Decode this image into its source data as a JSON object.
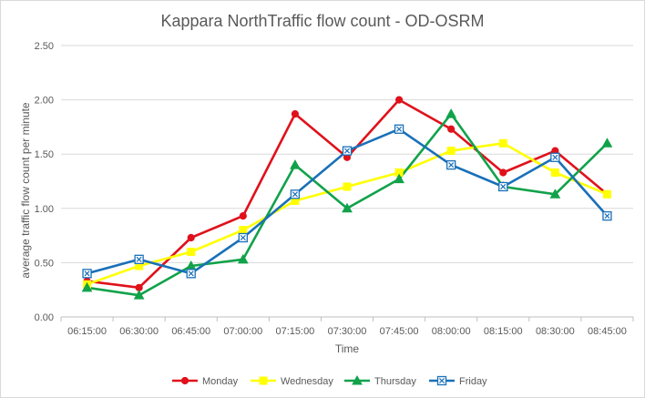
{
  "chart_data": {
    "type": "line",
    "title": "Kappara NorthTraffic flow count - OD-OSRM",
    "xlabel": "Time",
    "ylabel": "average traffic flow count per minute",
    "categories": [
      "06:15:00",
      "06:30:00",
      "06:45:00",
      "07:00:00",
      "07:15:00",
      "07:30:00",
      "07:45:00",
      "08:00:00",
      "08:15:00",
      "08:30:00",
      "08:45:00"
    ],
    "ylim": [
      0,
      2.5
    ],
    "yticks": [
      "0.00",
      "0.50",
      "1.00",
      "1.50",
      "2.00",
      "2.50"
    ],
    "grid": true,
    "legend_position": "bottom",
    "series": [
      {
        "name": "Monday",
        "color": "#e0111b",
        "marker": "circle",
        "values": [
          0.33,
          0.27,
          0.73,
          0.93,
          1.87,
          1.47,
          2.0,
          1.73,
          1.33,
          1.53,
          1.13
        ]
      },
      {
        "name": "Wednesday",
        "color": "#ffff00",
        "marker": "square",
        "values": [
          0.3,
          0.47,
          0.6,
          0.8,
          1.07,
          1.2,
          1.33,
          1.53,
          1.6,
          1.33,
          1.13
        ]
      },
      {
        "name": "Thursday",
        "color": "#11a24a",
        "marker": "triangle",
        "values": [
          0.27,
          0.2,
          0.47,
          0.53,
          1.4,
          1.0,
          1.27,
          1.87,
          1.2,
          1.13,
          1.6
        ]
      },
      {
        "name": "Friday",
        "color": "#1a70b8",
        "marker": "boxed-x",
        "values": [
          0.4,
          0.53,
          0.4,
          0.73,
          1.13,
          1.53,
          1.73,
          1.4,
          1.2,
          1.47,
          0.93
        ]
      }
    ]
  }
}
